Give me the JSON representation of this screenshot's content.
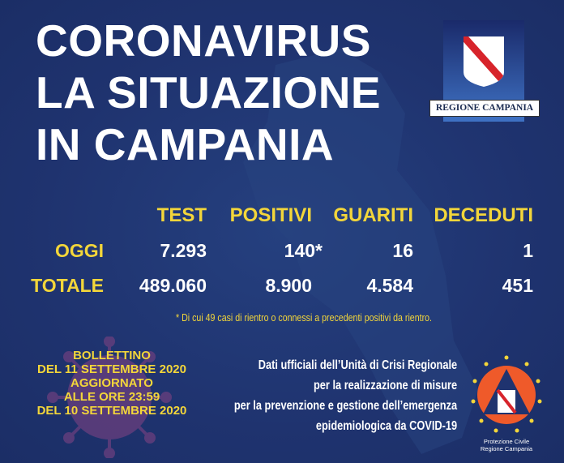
{
  "title": [
    "CORONAVIRUS",
    "LA SITUAZIONE",
    "IN CAMPANIA"
  ],
  "region_logo": {
    "text": "REGIONE CAMPANIA"
  },
  "table": {
    "headers": [
      "TEST",
      "POSITIVI",
      "GUARITI",
      "DECEDUTI"
    ],
    "rows": [
      {
        "label": "OGGI",
        "values": [
          "7.293",
          "140*",
          "16",
          "1"
        ]
      },
      {
        "label": "TOTALE",
        "values": [
          "489.060",
          "8.900",
          "4.584",
          "451"
        ]
      }
    ]
  },
  "footnote": "* Di cui 49 casi di rientro o connessi a precedenti positivi da rientro.",
  "bulletin": [
    "BOLLETTINO",
    "DEL 11 SETTEMBRE 2020",
    "AGGIORNATO",
    "ALLE ORE 23:59",
    "DEL 10 SETTEMBRE 2020"
  ],
  "info": [
    "Dati ufficiali dell’Unità di Crisi Regionale",
    "per la realizzazione di misure",
    "per la prevenzione e gestione dell’emergenza",
    "epidemiologica da COVID-19"
  ],
  "protezione_logo": [
    "Protezione Civile",
    "Regione Campania"
  ],
  "colors": {
    "background": "#1f336f",
    "accent": "#f3d63a",
    "text": "#ffffff"
  }
}
